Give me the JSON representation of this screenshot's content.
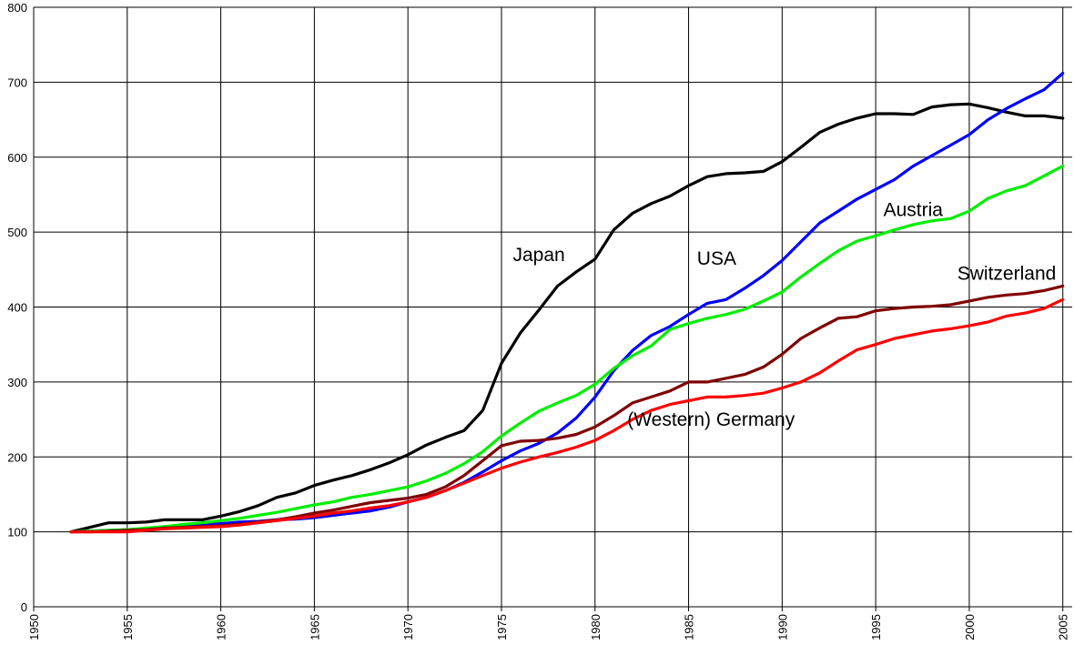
{
  "chart_data": {
    "type": "line",
    "title": "",
    "xlabel": "",
    "ylabel": "",
    "xlim": [
      1950,
      2005.5
    ],
    "ylim": [
      0,
      800
    ],
    "xticks": [
      "1950",
      "1955",
      "1960",
      "1965",
      "1970",
      "1975",
      "1980",
      "1985",
      "1990",
      "1995",
      "2000",
      "2005"
    ],
    "yticks": [
      "0",
      "100",
      "200",
      "300",
      "400",
      "500",
      "600",
      "700",
      "800"
    ],
    "grid": true,
    "legend": "none",
    "series": [
      {
        "name": "Japan",
        "color": "#000000",
        "label_pos": [
          1977,
          470
        ],
        "x": [
          1952,
          1953,
          1954,
          1955,
          1956,
          1957,
          1958,
          1959,
          1960,
          1961,
          1962,
          1963,
          1964,
          1965,
          1966,
          1967,
          1968,
          1969,
          1970,
          1971,
          1972,
          1973,
          1974,
          1975,
          1976,
          1977,
          1978,
          1979,
          1980,
          1981,
          1982,
          1983,
          1984,
          1985,
          1986,
          1987,
          1988,
          1989,
          1990,
          1991,
          1992,
          1993,
          1994,
          1995,
          1996,
          1997,
          1998,
          1999,
          2000,
          2001,
          2002,
          2003,
          2004,
          2005
        ],
        "y": [
          100,
          106,
          112,
          112,
          113,
          116,
          116,
          116,
          121,
          127,
          135,
          146,
          152,
          162,
          169,
          175,
          183,
          192,
          203,
          216,
          226,
          235,
          262,
          325,
          365,
          396,
          428,
          447,
          464,
          503,
          525,
          538,
          548,
          562,
          574,
          578,
          579,
          581,
          594,
          613,
          633,
          644,
          652,
          658,
          658,
          657,
          667,
          670,
          671,
          666,
          660,
          655,
          655,
          652
        ]
      },
      {
        "name": "USA",
        "color": "#0000ff",
        "label_pos": [
          1986.5,
          465
        ],
        "x": [
          1952,
          1953,
          1954,
          1955,
          1956,
          1957,
          1958,
          1959,
          1960,
          1961,
          1962,
          1963,
          1964,
          1965,
          1966,
          1967,
          1968,
          1969,
          1970,
          1971,
          1972,
          1973,
          1974,
          1975,
          1976,
          1977,
          1978,
          1979,
          1980,
          1981,
          1982,
          1983,
          1984,
          1985,
          1986,
          1987,
          1988,
          1989,
          1990,
          1991,
          1992,
          1993,
          1994,
          1995,
          1996,
          1997,
          1998,
          1999,
          2000,
          2001,
          2002,
          2003,
          2004,
          2005
        ],
        "y": [
          100,
          101,
          102,
          103,
          104,
          107,
          108,
          110,
          111,
          113,
          114,
          116,
          117,
          119,
          122,
          125,
          128,
          133,
          140,
          146,
          155,
          166,
          180,
          195,
          208,
          218,
          232,
          252,
          280,
          315,
          342,
          362,
          374,
          390,
          405,
          410,
          425,
          442,
          462,
          487,
          512,
          528,
          544,
          557,
          570,
          588,
          602,
          616,
          630,
          650,
          665,
          678,
          690,
          712
        ]
      },
      {
        "name": "Austria",
        "color": "#00ee00",
        "label_pos": [
          1997,
          530
        ],
        "x": [
          1952,
          1953,
          1954,
          1955,
          1956,
          1957,
          1958,
          1959,
          1960,
          1961,
          1962,
          1963,
          1964,
          1965,
          1966,
          1967,
          1968,
          1969,
          1970,
          1971,
          1972,
          1973,
          1974,
          1975,
          1976,
          1977,
          1978,
          1979,
          1980,
          1981,
          1982,
          1983,
          1984,
          1985,
          1986,
          1987,
          1988,
          1989,
          1990,
          1991,
          1992,
          1993,
          1994,
          1995,
          1996,
          1997,
          1998,
          1999,
          2000,
          2001,
          2002,
          2003,
          2004,
          2005
        ],
        "y": [
          100,
          101,
          102,
          103,
          105,
          107,
          110,
          112,
          115,
          118,
          122,
          126,
          131,
          136,
          140,
          146,
          150,
          155,
          160,
          168,
          178,
          191,
          207,
          228,
          245,
          261,
          272,
          282,
          297,
          318,
          335,
          348,
          370,
          378,
          385,
          390,
          397,
          408,
          420,
          440,
          458,
          475,
          488,
          495,
          503,
          510,
          515,
          518,
          528,
          545,
          555,
          562,
          575,
          588
        ]
      },
      {
        "name": "Switzerland",
        "color": "#800000",
        "label_pos": [
          2002,
          445
        ],
        "x": [
          1952,
          1953,
          1954,
          1955,
          1956,
          1957,
          1958,
          1959,
          1960,
          1961,
          1962,
          1963,
          1964,
          1965,
          1966,
          1967,
          1968,
          1969,
          1970,
          1971,
          1972,
          1973,
          1974,
          1975,
          1976,
          1977,
          1978,
          1979,
          1980,
          1981,
          1982,
          1983,
          1984,
          1985,
          1986,
          1987,
          1988,
          1989,
          1990,
          1991,
          1992,
          1993,
          1994,
          1995,
          1996,
          1997,
          1998,
          1999,
          2000,
          2001,
          2002,
          2003,
          2004,
          2005
        ],
        "y": [
          100,
          100,
          101,
          102,
          103,
          105,
          106,
          107,
          108,
          110,
          113,
          116,
          120,
          125,
          129,
          134,
          139,
          142,
          145,
          150,
          160,
          175,
          195,
          215,
          221,
          222,
          225,
          230,
          240,
          255,
          272,
          280,
          288,
          300,
          300,
          305,
          310,
          320,
          337,
          358,
          372,
          385,
          387,
          395,
          398,
          400,
          401,
          403,
          408,
          413,
          416,
          418,
          422,
          428
        ]
      },
      {
        "name": "(Western) Germany",
        "color": "#ff0000",
        "label_pos": [
          1986.2,
          250
        ],
        "x": [
          1952,
          1953,
          1954,
          1955,
          1956,
          1957,
          1958,
          1959,
          1960,
          1961,
          1962,
          1963,
          1964,
          1965,
          1966,
          1967,
          1968,
          1969,
          1970,
          1971,
          1972,
          1973,
          1974,
          1975,
          1976,
          1977,
          1978,
          1979,
          1980,
          1981,
          1982,
          1983,
          1984,
          1985,
          1986,
          1987,
          1988,
          1989,
          1990,
          1991,
          1992,
          1993,
          1994,
          1995,
          1996,
          1997,
          1998,
          1999,
          2000,
          2001,
          2002,
          2003,
          2004,
          2005
        ],
        "y": [
          100,
          100,
          100,
          100,
          102,
          104,
          105,
          106,
          107,
          109,
          112,
          115,
          118,
          121,
          125,
          128,
          132,
          135,
          140,
          146,
          155,
          165,
          175,
          185,
          193,
          200,
          206,
          213,
          222,
          235,
          250,
          262,
          270,
          275,
          280,
          280,
          282,
          285,
          292,
          300,
          312,
          328,
          343,
          350,
          358,
          363,
          368,
          371,
          375,
          380,
          388,
          392,
          398,
          410
        ]
      }
    ]
  }
}
